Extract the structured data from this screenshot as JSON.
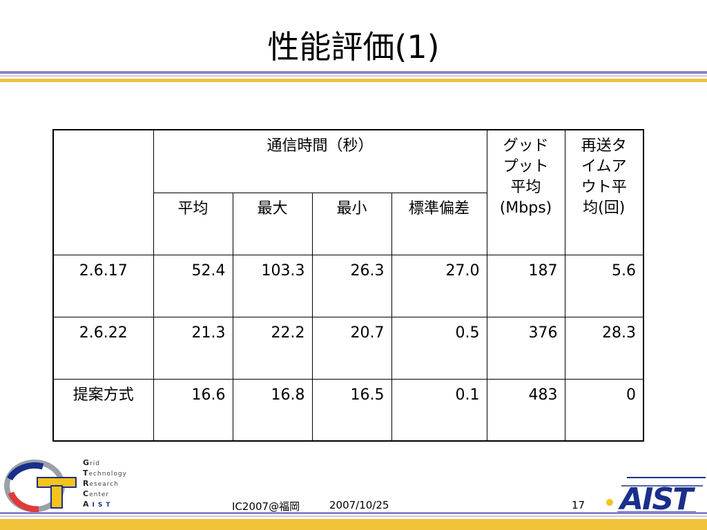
{
  "slide": {
    "title": "性能評価(1)"
  },
  "table": {
    "group_header": "通信時間（秒）",
    "sub_headers": [
      "平均",
      "最大",
      "最小",
      "標準偏差"
    ],
    "goodput_header": "グッドプット平均(Mbps)",
    "goodput_header_lines": [
      "グッド",
      "プット",
      "平均",
      "(Mbps)"
    ],
    "timeout_header": "再送タイムアウト平均(回)",
    "timeout_header_lines": [
      "再送タ",
      "イムア",
      "ウト平",
      "均(回)"
    ],
    "rows": [
      {
        "label": "2.6.17",
        "avg": "52.4",
        "max": "103.3",
        "min": "26.3",
        "std": "27.0",
        "goodput": "187",
        "timeout": "5.6"
      },
      {
        "label": "2.6.22",
        "avg": "21.3",
        "max": "22.2",
        "min": "20.7",
        "std": "0.5",
        "goodput": "376",
        "timeout": "28.3"
      },
      {
        "label": "提案方式",
        "avg": "16.6",
        "max": "16.8",
        "min": "16.5",
        "std": "0.1",
        "goodput": "483",
        "timeout": "0"
      }
    ]
  },
  "footer": {
    "conference": "IC2007@福岡",
    "date": "2007/10/25",
    "page_number": "17",
    "gtrc_lines": [
      "Grid",
      "Technology",
      "Research",
      "Center"
    ],
    "gtrc_org": "AIST",
    "logo_text": "AIST"
  },
  "colors": {
    "rule_purple": "#8a87c4",
    "rule_light": "#c9c7e6",
    "rule_gold": "#f1c33a",
    "logo_blue": "#1a2f8a",
    "logo_red": "#e03a3a",
    "logo_yellow": "#f6c21c"
  }
}
